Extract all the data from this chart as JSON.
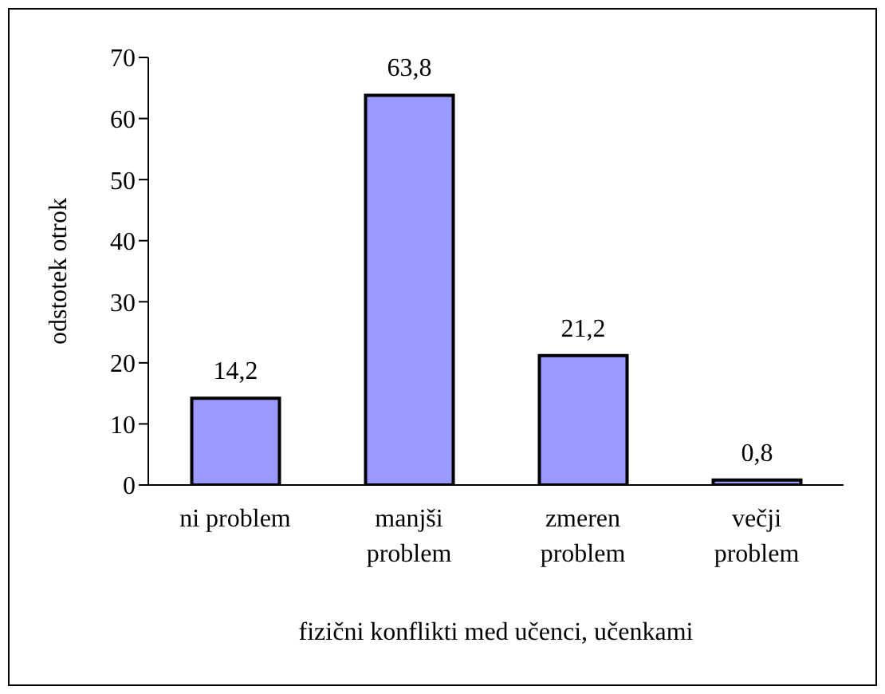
{
  "chart_data": {
    "type": "bar",
    "xlabel": "fizični konflikti med učenci, učenkami",
    "ylabel": "odstotek otrok",
    "categories": [
      "ni problem",
      "manjši problem",
      "zmeren problem",
      "večji problem"
    ],
    "values": [
      14.2,
      63.8,
      21.2,
      0.8
    ],
    "value_labels": [
      "14,2",
      "63,8",
      "21,2",
      "0,8"
    ],
    "color": "#9999ff",
    "ylim": [
      0,
      70
    ],
    "yticks": [
      0,
      10,
      20,
      30,
      40,
      50,
      60,
      70
    ],
    "grid": false,
    "legend": false
  }
}
